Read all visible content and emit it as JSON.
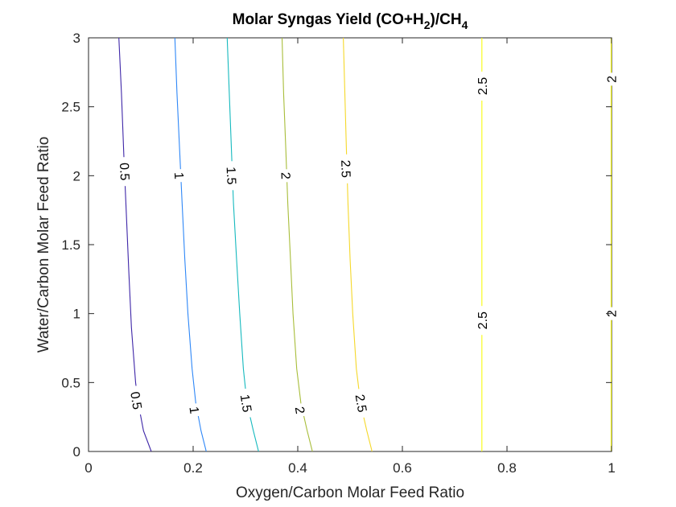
{
  "chart_data": {
    "type": "contour",
    "title": {
      "prefix": "Molar Syngas Yield (CO+H",
      "sub1": "2",
      "middle": ")/CH",
      "sub2": "4"
    },
    "xlabel": "Oxygen/Carbon Molar Feed Ratio",
    "ylabel": "Water/Carbon Molar Feed Ratio",
    "xlim": [
      0,
      1
    ],
    "ylim": [
      0,
      3
    ],
    "xticks": [
      "0",
      "0.2",
      "0.4",
      "0.6",
      "0.8",
      "1"
    ],
    "yticks": [
      "0",
      "0.5",
      "1",
      "1.5",
      "2",
      "2.5",
      "3"
    ],
    "grid": false,
    "contours": [
      {
        "level": "0.5",
        "color": "#3e26a8",
        "points": [
          [
            0.12,
            0.0
          ],
          [
            0.105,
            0.15
          ],
          [
            0.095,
            0.35
          ],
          [
            0.09,
            0.5
          ],
          [
            0.082,
            0.9
          ],
          [
            0.077,
            1.3
          ],
          [
            0.072,
            1.75
          ],
          [
            0.068,
            2.1
          ],
          [
            0.063,
            2.6
          ],
          [
            0.058,
            3.0
          ]
        ],
        "labels": [
          [
            0.092,
            0.37
          ],
          [
            0.07,
            2.03
          ]
        ]
      },
      {
        "level": "1",
        "color": "#2e87f7",
        "points": [
          [
            0.225,
            0.0
          ],
          [
            0.215,
            0.15
          ],
          [
            0.205,
            0.35
          ],
          [
            0.198,
            0.6
          ],
          [
            0.19,
            1.0
          ],
          [
            0.184,
            1.4
          ],
          [
            0.179,
            1.8
          ],
          [
            0.174,
            2.2
          ],
          [
            0.169,
            2.6
          ],
          [
            0.165,
            3.0
          ]
        ],
        "labels": [
          [
            0.203,
            0.3
          ],
          [
            0.174,
            2.0
          ]
        ]
      },
      {
        "level": "1.5",
        "color": "#15b9be",
        "points": [
          [
            0.325,
            0.0
          ],
          [
            0.315,
            0.15
          ],
          [
            0.303,
            0.35
          ],
          [
            0.296,
            0.6
          ],
          [
            0.289,
            1.0
          ],
          [
            0.283,
            1.4
          ],
          [
            0.277,
            1.8
          ],
          [
            0.273,
            2.2
          ],
          [
            0.269,
            2.6
          ],
          [
            0.265,
            3.0
          ]
        ],
        "labels": [
          [
            0.302,
            0.35
          ],
          [
            0.274,
            2.0
          ]
        ]
      },
      {
        "level": "2",
        "color": "#a8bd3a",
        "points": [
          [
            0.428,
            0.0
          ],
          [
            0.418,
            0.15
          ],
          [
            0.406,
            0.35
          ],
          [
            0.398,
            0.6
          ],
          [
            0.391,
            1.0
          ],
          [
            0.386,
            1.4
          ],
          [
            0.381,
            1.8
          ],
          [
            0.377,
            2.2
          ],
          [
            0.373,
            2.6
          ],
          [
            0.37,
            3.0
          ]
        ],
        "labels": [
          [
            0.405,
            0.3
          ],
          [
            0.378,
            2.0
          ]
        ]
      },
      {
        "level": "2.5",
        "color": "#f5d82a",
        "points": [
          [
            0.542,
            0.0
          ],
          [
            0.532,
            0.15
          ],
          [
            0.52,
            0.35
          ],
          [
            0.512,
            0.6
          ],
          [
            0.505,
            1.0
          ],
          [
            0.5,
            1.4
          ],
          [
            0.496,
            1.8
          ],
          [
            0.493,
            2.2
          ],
          [
            0.49,
            2.6
          ],
          [
            0.487,
            3.0
          ]
        ],
        "labels": [
          [
            0.522,
            0.35
          ],
          [
            0.493,
            2.05
          ]
        ]
      },
      {
        "level": "2.5",
        "color": "#f9fb0e",
        "points": [
          [
            0.752,
            0.0
          ],
          [
            0.752,
            0.5
          ],
          [
            0.752,
            1.0
          ],
          [
            0.752,
            1.5
          ],
          [
            0.752,
            2.0
          ],
          [
            0.752,
            2.5
          ],
          [
            0.752,
            3.0
          ]
        ],
        "labels": [
          [
            0.752,
            0.95
          ],
          [
            0.752,
            2.65
          ]
        ]
      },
      {
        "level": "2",
        "color": "#f9fb0e",
        "points": [
          [
            0.999,
            0.0
          ],
          [
            0.999,
            1.0
          ],
          [
            0.999,
            2.0
          ],
          [
            0.999,
            3.0
          ]
        ],
        "labels": [
          [
            0.999,
            1.0
          ],
          [
            0.999,
            2.7
          ]
        ]
      }
    ]
  }
}
